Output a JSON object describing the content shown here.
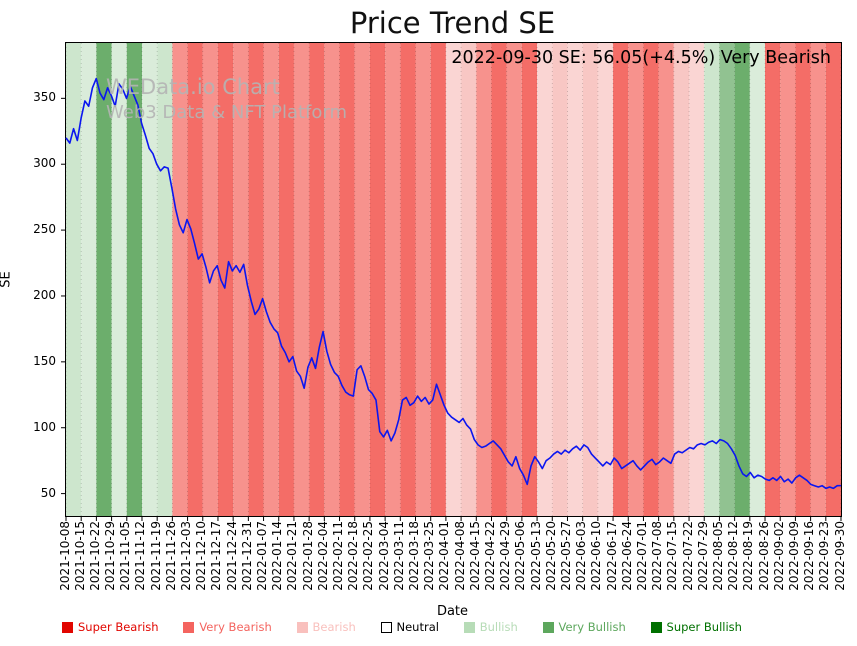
{
  "figure": {
    "title": "Price Trend SE",
    "annotation": "2022-09-30 SE: 56.05(+4.5%) Very Bearish",
    "watermark_line1": "WEData.io Chart",
    "watermark_line2": "Web3 Data & NFT Platform",
    "xlabel": "Date",
    "ylabel": "SE"
  },
  "chart_data": {
    "type": "line",
    "title": "Price Trend SE",
    "xlabel": "Date",
    "ylabel": "SE",
    "ylim": [
      33,
      392
    ],
    "yticks": [
      50,
      100,
      150,
      200,
      250,
      300,
      350
    ],
    "grid": "vertical-dotted",
    "legend_position": "bottom",
    "line_color": "#0b16f0",
    "x_tick_labels": [
      "2021-10-08",
      "2021-10-15",
      "2021-10-22",
      "2021-10-29",
      "2021-11-05",
      "2021-11-12",
      "2021-11-19",
      "2021-11-26",
      "2021-12-03",
      "2021-12-10",
      "2021-12-17",
      "2021-12-24",
      "2021-12-31",
      "2022-01-07",
      "2022-01-14",
      "2022-01-21",
      "2022-01-28",
      "2022-02-04",
      "2022-02-11",
      "2022-02-18",
      "2022-02-25",
      "2022-03-04",
      "2022-03-11",
      "2022-03-18",
      "2022-03-25",
      "2022-04-01",
      "2022-04-08",
      "2022-04-15",
      "2022-04-22",
      "2022-04-29",
      "2022-05-06",
      "2022-05-13",
      "2022-05-20",
      "2022-05-27",
      "2022-06-03",
      "2022-06-10",
      "2022-06-17",
      "2022-06-24",
      "2022-07-01",
      "2022-07-08",
      "2022-07-15",
      "2022-07-22",
      "2022-07-29",
      "2022-08-05",
      "2022-08-12",
      "2022-08-19",
      "2022-08-26",
      "2022-09-02",
      "2022-09-09",
      "2022-09-16",
      "2022-09-23",
      "2022-09-30"
    ],
    "series": [
      {
        "name": "SE",
        "color": "#0b16f0",
        "values": [
          320,
          316,
          327,
          318,
          335,
          348,
          344,
          358,
          365,
          354,
          349,
          358,
          352,
          344,
          361,
          357,
          350,
          359,
          352,
          345,
          331,
          322,
          312,
          308,
          300,
          295,
          298,
          297,
          282,
          266,
          254,
          248,
          258,
          251,
          240,
          228,
          232,
          222,
          210,
          219,
          223,
          212,
          206,
          226,
          219,
          223,
          218,
          224,
          208,
          196,
          186,
          190,
          198,
          188,
          180,
          175,
          172,
          162,
          157,
          150,
          154,
          143,
          139,
          130,
          146,
          153,
          145,
          161,
          173,
          158,
          148,
          142,
          139,
          132,
          127,
          125,
          124,
          144,
          147,
          139,
          129,
          126,
          121,
          97,
          93,
          98,
          90,
          96,
          106,
          121,
          123,
          117,
          119,
          124,
          120,
          123,
          118,
          121,
          133,
          125,
          117,
          111,
          108,
          106,
          104,
          107,
          102,
          99,
          91,
          87,
          85,
          86,
          88,
          90,
          87,
          84,
          79,
          74,
          71,
          78,
          69,
          64,
          57,
          71,
          78,
          74,
          69,
          75,
          77,
          80,
          82,
          80,
          83,
          81,
          84,
          86,
          83,
          87,
          85,
          80,
          77,
          74,
          71,
          74,
          72,
          77,
          74,
          69,
          71,
          73,
          75,
          71,
          68,
          71,
          74,
          76,
          72,
          74,
          77,
          75,
          73,
          80,
          82,
          81,
          83,
          85,
          84,
          87,
          88,
          87,
          89,
          90,
          88,
          91,
          90,
          88,
          84,
          79,
          71,
          65,
          63,
          66,
          62,
          64,
          63,
          61,
          60,
          62,
          60,
          63,
          59,
          61,
          58,
          62,
          64,
          62,
          60,
          57,
          56,
          55,
          56,
          54,
          55,
          54,
          56,
          56.05
        ]
      }
    ],
    "bands": {
      "note": "weekly sentiment background bands, one per interval between consecutive x ticks",
      "sentiments": [
        "bullish",
        "bullish",
        "very_bullish",
        "bullish",
        "very_bullish",
        "bullish",
        "bullish",
        "very_bearish",
        "very_bearish",
        "very_bearish",
        "very_bearish",
        "very_bearish",
        "very_bearish",
        "very_bearish",
        "very_bearish",
        "very_bearish",
        "very_bearish",
        "very_bearish",
        "very_bearish",
        "very_bearish",
        "very_bearish",
        "very_bearish",
        "very_bearish",
        "very_bearish",
        "very_bearish",
        "bearish",
        "bearish",
        "very_bearish",
        "very_bearish",
        "very_bearish",
        "very_bearish",
        "bearish",
        "bearish",
        "bearish",
        "bearish",
        "bearish",
        "very_bearish",
        "very_bearish",
        "very_bearish",
        "very_bearish",
        "bearish",
        "bearish",
        "bullish",
        "very_bullish",
        "very_bullish",
        "bullish",
        "very_bearish",
        "very_bearish",
        "very_bearish",
        "very_bearish",
        "very_bearish"
      ],
      "colors": {
        "super_bearish": "#e10600",
        "very_bearish": "#f46d67",
        "bearish": "#f8c7c4",
        "neutral": "#ffffff",
        "bullish": "#cde6cd",
        "very_bullish": "#6cae6c",
        "super_bullish": "#007000"
      }
    },
    "legend": [
      {
        "key": "super_bearish",
        "label": "Super Bearish",
        "color": "#e10600"
      },
      {
        "key": "very_bearish",
        "label": "Very Bearish",
        "color": "#f4645f"
      },
      {
        "key": "bearish",
        "label": "Bearish",
        "color": "#f9c0bd"
      },
      {
        "key": "neutral",
        "label": "Neutral",
        "color": "#ffffff",
        "text_color": "#000000"
      },
      {
        "key": "bullish",
        "label": "Bullish",
        "color": "#b7dcb7"
      },
      {
        "key": "very_bullish",
        "label": "Very Bullish",
        "color": "#5da75d"
      },
      {
        "key": "super_bullish",
        "label": "Super Bullish",
        "color": "#007000"
      }
    ]
  }
}
